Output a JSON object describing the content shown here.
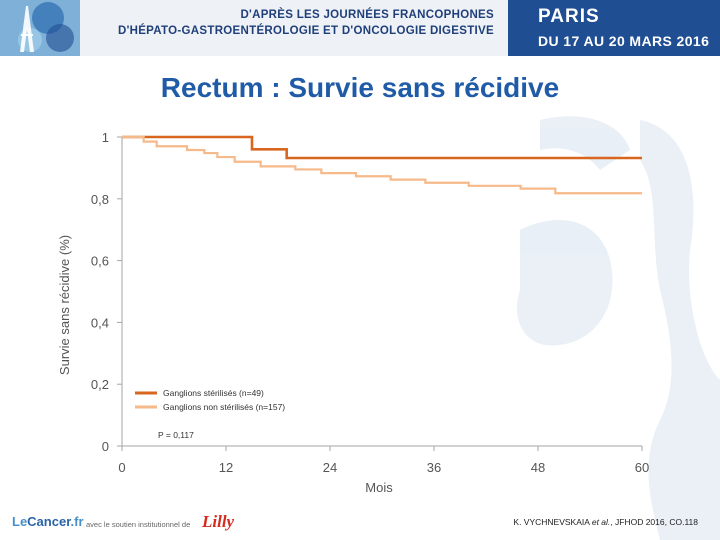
{
  "header": {
    "line1": "D'APRÈS LES JOURNÉES FRANCOPHONES",
    "line2": "D'HÉPATO-GASTROENTÉROLOGIE ET D'ONCOLOGIE DIGESTIVE",
    "city": "PARIS",
    "dates": "DU 17 AU 20 MARS 2016"
  },
  "slide": {
    "title": "Rectum : Survie sans récidive"
  },
  "chart_data": {
    "type": "line",
    "step": true,
    "title": "Rectum : Survie sans récidive",
    "xlabel": "Mois",
    "ylabel": "Survie sans récidive (%)",
    "xlim": [
      0,
      60
    ],
    "ylim": [
      0,
      1
    ],
    "x_ticks": [
      0,
      12,
      24,
      36,
      48,
      60
    ],
    "x_tick_labels": [
      "0",
      "12",
      "24",
      "36",
      "48",
      "60"
    ],
    "y_ticks": [
      0,
      0.2,
      0.4,
      0.6,
      0.8,
      1
    ],
    "y_tick_labels": [
      "0",
      "0,2",
      "0,4",
      "0,6",
      "0,8",
      "1"
    ],
    "grid": false,
    "legend_position": "bottom-left",
    "annotation": "P = 0,117",
    "series": [
      {
        "name": "Ganglions stérilisés (n=49)",
        "color": "#d9661f",
        "x": [
          0,
          15,
          19,
          60
        ],
        "y": [
          1.0,
          0.96,
          0.932,
          0.932
        ]
      },
      {
        "name": "Ganglions non stérilisés (n=157)",
        "color": "#f6b98a",
        "x": [
          0,
          2.5,
          4,
          7.5,
          9.5,
          11,
          13,
          16,
          20,
          23,
          27,
          31,
          35,
          40,
          46,
          50,
          60
        ],
        "y": [
          1.0,
          0.985,
          0.97,
          0.958,
          0.948,
          0.935,
          0.92,
          0.905,
          0.895,
          0.883,
          0.873,
          0.862,
          0.852,
          0.842,
          0.833,
          0.818,
          0.818
        ]
      }
    ]
  },
  "footer": {
    "logo_main": "Le",
    "logo_brand": "Cancer",
    "logo_suffix": ".fr",
    "support_text": "avec le soutien institutionnel de",
    "sponsor": "Lilly",
    "citation_authors": "K. VYCHNEVSKAIA",
    "citation_etal": "et al.",
    "citation_rest": ", JFHOD 2016, CO.118"
  }
}
